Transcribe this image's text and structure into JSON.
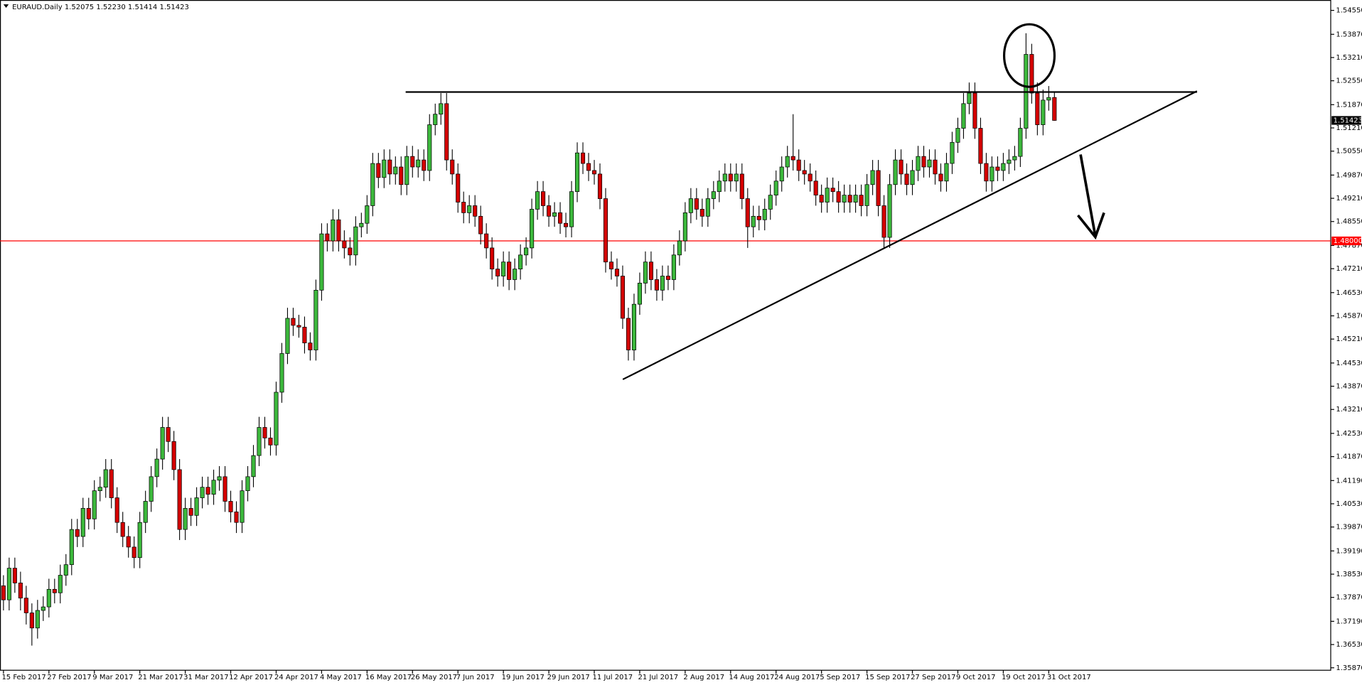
{
  "chart_data": {
    "type": "candlestick",
    "header": {
      "symbol": "EURAUD.Daily",
      "ohlc_labels": [
        "1.52075",
        "1.52230",
        "1.51414",
        "1.51423"
      ]
    },
    "up_color": "#3cb83c",
    "down_color": "#d40000",
    "ylim": [
      1.358,
      1.5482
    ],
    "yticks": [
      {
        "value": 1.5455,
        "label": "1.54550"
      },
      {
        "value": 1.5387,
        "label": "1.53870"
      },
      {
        "value": 1.5321,
        "label": "1.53210"
      },
      {
        "value": 1.5255,
        "label": "1.52550"
      },
      {
        "value": 1.5187,
        "label": "1.51870"
      },
      {
        "value": 1.5121,
        "label": "1.51210"
      },
      {
        "value": 1.5055,
        "label": "1.50550"
      },
      {
        "value": 1.4987,
        "label": "1.49870"
      },
      {
        "value": 1.4921,
        "label": "1.49210"
      },
      {
        "value": 1.4855,
        "label": "1.48550"
      },
      {
        "value": 1.4787,
        "label": "1.47870"
      },
      {
        "value": 1.4721,
        "label": "1.47210"
      },
      {
        "value": 1.4653,
        "label": "1.46530"
      },
      {
        "value": 1.4587,
        "label": "1.45870"
      },
      {
        "value": 1.4521,
        "label": "1.45210"
      },
      {
        "value": 1.4453,
        "label": "1.44530"
      },
      {
        "value": 1.4387,
        "label": "1.43870"
      },
      {
        "value": 1.4321,
        "label": "1.43210"
      },
      {
        "value": 1.4253,
        "label": "1.42530"
      },
      {
        "value": 1.4187,
        "label": "1.41870"
      },
      {
        "value": 1.4119,
        "label": "1.41190"
      },
      {
        "value": 1.4053,
        "label": "1.40530"
      },
      {
        "value": 1.3987,
        "label": "1.39870"
      },
      {
        "value": 1.3919,
        "label": "1.39190"
      },
      {
        "value": 1.3853,
        "label": "1.38530"
      },
      {
        "value": 1.3787,
        "label": "1.37870"
      },
      {
        "value": 1.3719,
        "label": "1.37190"
      },
      {
        "value": 1.3653,
        "label": "1.36530"
      },
      {
        "value": 1.3587,
        "label": "1.35870"
      }
    ],
    "hlines": [
      {
        "value": 1.48,
        "label": "1.48000",
        "color": "#ff0000"
      }
    ],
    "price_label": {
      "value": 1.51423,
      "label": "1.51423"
    },
    "categories": [
      "15 Feb 2017",
      null,
      null,
      null,
      null,
      null,
      null,
      null,
      "27 Feb 2017",
      null,
      null,
      null,
      null,
      null,
      null,
      null,
      "9 Mar 2017",
      null,
      null,
      null,
      null,
      null,
      null,
      null,
      "21 Mar 2017",
      null,
      null,
      null,
      null,
      null,
      null,
      null,
      "31 Mar 2017",
      null,
      null,
      null,
      null,
      null,
      null,
      null,
      "12 Apr 2017",
      null,
      null,
      null,
      null,
      null,
      null,
      null,
      "24 Apr 2017",
      null,
      null,
      null,
      null,
      null,
      null,
      null,
      "4 May 2017",
      null,
      null,
      null,
      null,
      null,
      null,
      null,
      "16 May 2017",
      null,
      null,
      null,
      null,
      null,
      null,
      null,
      "26 May 2017",
      null,
      null,
      null,
      null,
      null,
      null,
      null,
      "7 Jun 2017",
      null,
      null,
      null,
      null,
      null,
      null,
      null,
      "19 Jun 2017",
      null,
      null,
      null,
      null,
      null,
      null,
      null,
      "29 Jun 2017",
      null,
      null,
      null,
      null,
      null,
      null,
      null,
      "11 Jul 2017",
      null,
      null,
      null,
      null,
      null,
      null,
      null,
      "21 Jul 2017",
      null,
      null,
      null,
      null,
      null,
      null,
      null,
      "2 Aug 2017",
      null,
      null,
      null,
      null,
      null,
      null,
      null,
      "14 Aug 2017",
      null,
      null,
      null,
      null,
      null,
      null,
      null,
      "24 Aug 2017",
      null,
      null,
      null,
      null,
      null,
      null,
      null,
      "5 Sep 2017",
      null,
      null,
      null,
      null,
      null,
      null,
      null,
      "15 Sep 2017",
      null,
      null,
      null,
      null,
      null,
      null,
      null,
      "27 Sep 2017",
      null,
      null,
      null,
      null,
      null,
      null,
      null,
      "9 Oct 2017",
      null,
      null,
      null,
      null,
      null,
      null,
      null,
      "19 Oct 2017",
      null,
      null,
      null,
      null,
      null,
      null,
      null,
      "31 Oct 2017",
      null
    ],
    "open": [
      1.382,
      1.378,
      1.387,
      1.3828,
      1.3785,
      1.3743,
      1.37,
      1.375,
      1.376,
      1.381,
      1.38,
      1.385,
      1.388,
      1.398,
      1.396,
      1.404,
      1.401,
      1.409,
      1.41,
      1.415,
      1.407,
      1.4,
      1.396,
      1.393,
      1.39,
      1.4,
      1.406,
      1.413,
      1.418,
      1.427,
      1.423,
      1.415,
      1.398,
      1.404,
      1.402,
      1.407,
      1.41,
      1.408,
      1.412,
      1.413,
      1.406,
      1.403,
      1.4,
      1.409,
      1.413,
      1.419,
      1.427,
      1.424,
      1.422,
      1.437,
      1.448,
      1.458,
      1.456,
      1.4555,
      1.451,
      1.449,
      1.466,
      1.482,
      1.48,
      1.486,
      1.48,
      1.478,
      1.476,
      1.484,
      1.485,
      1.49,
      1.502,
      1.498,
      1.503,
      1.499,
      1.501,
      1.496,
      1.504,
      1.501,
      1.503,
      1.5,
      1.513,
      1.516,
      1.519,
      1.503,
      1.499,
      1.491,
      1.488,
      1.49,
      1.487,
      1.482,
      1.478,
      1.472,
      1.47,
      1.474,
      1.469,
      1.472,
      1.476,
      1.478,
      1.489,
      1.494,
      1.49,
      1.487,
      1.488,
      1.485,
      1.484,
      1.494,
      1.505,
      1.502,
      1.5,
      1.499,
      1.492,
      1.474,
      1.472,
      1.47,
      1.458,
      1.449,
      1.462,
      1.468,
      1.474,
      1.469,
      1.466,
      1.47,
      1.469,
      1.476,
      1.48,
      1.488,
      1.492,
      1.489,
      1.487,
      1.492,
      1.494,
      1.497,
      1.499,
      1.497,
      1.499,
      1.492,
      1.484,
      1.487,
      1.486,
      1.489,
      1.493,
      1.497,
      1.501,
      1.504,
      1.503,
      1.5,
      1.499,
      1.497,
      1.493,
      1.491,
      1.495,
      1.494,
      1.491,
      1.493,
      1.491,
      1.493,
      1.49,
      1.496,
      1.5,
      1.49,
      1.481,
      1.496,
      1.503,
      1.499,
      1.496,
      1.5,
      1.504,
      1.501,
      1.503,
      1.499,
      1.497,
      1.502,
      1.508,
      1.512,
      1.519,
      1.522,
      1.512,
      1.502,
      1.497,
      1.501,
      1.5,
      1.502,
      1.503,
      1.504,
      1.512,
      1.533,
      1.522,
      1.513,
      1.52,
      1.52075
    ],
    "high": [
      1.385,
      1.39,
      1.39,
      1.386,
      1.382,
      1.377,
      1.378,
      1.379,
      1.384,
      1.384,
      1.388,
      1.391,
      1.401,
      1.401,
      1.407,
      1.407,
      1.412,
      1.413,
      1.418,
      1.418,
      1.41,
      1.403,
      1.399,
      1.396,
      1.403,
      1.409,
      1.416,
      1.421,
      1.43,
      1.43,
      1.426,
      1.418,
      1.407,
      1.407,
      1.41,
      1.413,
      1.413,
      1.415,
      1.416,
      1.416,
      1.409,
      1.406,
      1.412,
      1.416,
      1.422,
      1.43,
      1.43,
      1.427,
      1.44,
      1.451,
      1.461,
      1.461,
      1.459,
      1.4585,
      1.454,
      1.469,
      1.485,
      1.485,
      1.489,
      1.489,
      1.483,
      1.481,
      1.487,
      1.488,
      1.493,
      1.505,
      1.505,
      1.506,
      1.506,
      1.504,
      1.504,
      1.507,
      1.507,
      1.506,
      1.506,
      1.516,
      1.519,
      1.522,
      1.522,
      1.506,
      1.502,
      1.494,
      1.493,
      1.493,
      1.49,
      1.485,
      1.481,
      1.475,
      1.477,
      1.477,
      1.475,
      1.479,
      1.481,
      1.492,
      1.497,
      1.497,
      1.493,
      1.491,
      1.491,
      1.488,
      1.497,
      1.508,
      1.508,
      1.505,
      1.503,
      1.502,
      1.495,
      1.477,
      1.475,
      1.473,
      1.461,
      1.465,
      1.471,
      1.477,
      1.477,
      1.472,
      1.473,
      1.473,
      1.479,
      1.483,
      1.491,
      1.495,
      1.495,
      1.492,
      1.495,
      1.497,
      1.5,
      1.502,
      1.502,
      1.502,
      1.502,
      1.495,
      1.49,
      1.49,
      1.492,
      1.496,
      1.5,
      1.504,
      1.507,
      1.516,
      1.506,
      1.503,
      1.502,
      1.5,
      1.496,
      1.498,
      1.498,
      1.497,
      1.496,
      1.496,
      1.496,
      1.496,
      1.499,
      1.503,
      1.503,
      1.493,
      1.499,
      1.506,
      1.506,
      1.502,
      1.503,
      1.507,
      1.507,
      1.506,
      1.506,
      1.502,
      1.505,
      1.511,
      1.515,
      1.522,
      1.525,
      1.525,
      1.515,
      1.505,
      1.504,
      1.504,
      1.505,
      1.506,
      1.507,
      1.515,
      1.539,
      1.536,
      1.525,
      1.523,
      1.524,
      1.5223
    ],
    "low": [
      1.375,
      1.375,
      1.38,
      1.375,
      1.371,
      1.365,
      1.367,
      1.372,
      1.373,
      1.377,
      1.377,
      1.382,
      1.385,
      1.393,
      1.393,
      1.398,
      1.398,
      1.406,
      1.407,
      1.404,
      1.397,
      1.393,
      1.39,
      1.387,
      1.387,
      1.397,
      1.403,
      1.41,
      1.415,
      1.42,
      1.412,
      1.395,
      1.395,
      1.399,
      1.399,
      1.404,
      1.405,
      1.405,
      1.409,
      1.403,
      1.4,
      1.397,
      1.397,
      1.406,
      1.41,
      1.416,
      1.421,
      1.419,
      1.419,
      1.434,
      1.445,
      1.453,
      1.4525,
      1.448,
      1.446,
      1.446,
      1.463,
      1.477,
      1.477,
      1.477,
      1.475,
      1.473,
      1.473,
      1.481,
      1.482,
      1.487,
      1.495,
      1.495,
      1.496,
      1.496,
      1.493,
      1.493,
      1.498,
      1.498,
      1.497,
      1.497,
      1.51,
      1.513,
      1.5,
      1.496,
      1.488,
      1.485,
      1.485,
      1.484,
      1.479,
      1.475,
      1.469,
      1.467,
      1.467,
      1.466,
      1.466,
      1.469,
      1.473,
      1.475,
      1.486,
      1.487,
      1.484,
      1.484,
      1.482,
      1.481,
      1.481,
      1.491,
      1.499,
      1.497,
      1.496,
      1.489,
      1.471,
      1.469,
      1.467,
      1.455,
      1.446,
      1.446,
      1.459,
      1.465,
      1.466,
      1.463,
      1.463,
      1.466,
      1.466,
      1.473,
      1.477,
      1.485,
      1.486,
      1.484,
      1.484,
      1.489,
      1.491,
      1.494,
      1.494,
      1.494,
      1.489,
      1.478,
      1.481,
      1.483,
      1.483,
      1.486,
      1.49,
      1.494,
      1.498,
      1.5,
      1.497,
      1.496,
      1.494,
      1.49,
      1.488,
      1.488,
      1.491,
      1.488,
      1.488,
      1.488,
      1.488,
      1.487,
      1.487,
      1.493,
      1.487,
      1.478,
      1.478,
      1.493,
      1.496,
      1.493,
      1.493,
      1.497,
      1.498,
      1.498,
      1.496,
      1.494,
      1.494,
      1.499,
      1.505,
      1.509,
      1.516,
      1.509,
      1.499,
      1.494,
      1.494,
      1.497,
      1.497,
      1.499,
      1.5,
      1.501,
      1.509,
      1.519,
      1.51,
      1.51,
      1.517,
      1.51414
    ],
    "close": [
      1.378,
      1.387,
      1.3828,
      1.3785,
      1.3743,
      1.37,
      1.375,
      1.376,
      1.381,
      1.38,
      1.385,
      1.388,
      1.398,
      1.396,
      1.404,
      1.401,
      1.409,
      1.41,
      1.415,
      1.407,
      1.4,
      1.396,
      1.393,
      1.39,
      1.4,
      1.406,
      1.413,
      1.418,
      1.427,
      1.423,
      1.415,
      1.398,
      1.404,
      1.402,
      1.407,
      1.41,
      1.408,
      1.412,
      1.413,
      1.406,
      1.403,
      1.4,
      1.409,
      1.413,
      1.419,
      1.427,
      1.424,
      1.422,
      1.437,
      1.448,
      1.458,
      1.456,
      1.4555,
      1.451,
      1.449,
      1.466,
      1.482,
      1.48,
      1.486,
      1.48,
      1.478,
      1.476,
      1.484,
      1.485,
      1.49,
      1.502,
      1.498,
      1.503,
      1.499,
      1.501,
      1.496,
      1.504,
      1.501,
      1.503,
      1.5,
      1.513,
      1.516,
      1.519,
      1.503,
      1.499,
      1.491,
      1.488,
      1.49,
      1.487,
      1.482,
      1.478,
      1.472,
      1.47,
      1.474,
      1.469,
      1.472,
      1.476,
      1.478,
      1.489,
      1.494,
      1.49,
      1.487,
      1.488,
      1.485,
      1.484,
      1.494,
      1.505,
      1.502,
      1.5,
      1.499,
      1.492,
      1.474,
      1.472,
      1.47,
      1.458,
      1.449,
      1.462,
      1.468,
      1.474,
      1.469,
      1.466,
      1.47,
      1.469,
      1.476,
      1.48,
      1.488,
      1.492,
      1.489,
      1.487,
      1.492,
      1.494,
      1.497,
      1.499,
      1.497,
      1.499,
      1.492,
      1.484,
      1.487,
      1.486,
      1.489,
      1.493,
      1.497,
      1.501,
      1.504,
      1.503,
      1.5,
      1.499,
      1.497,
      1.493,
      1.491,
      1.495,
      1.494,
      1.491,
      1.493,
      1.491,
      1.493,
      1.49,
      1.496,
      1.5,
      1.49,
      1.481,
      1.496,
      1.503,
      1.499,
      1.496,
      1.5,
      1.504,
      1.501,
      1.503,
      1.499,
      1.497,
      1.502,
      1.508,
      1.512,
      1.519,
      1.522,
      1.512,
      1.502,
      1.497,
      1.501,
      1.5,
      1.502,
      1.503,
      1.504,
      1.512,
      1.533,
      1.522,
      1.513,
      1.52,
      1.52075,
      1.51423
    ]
  }
}
